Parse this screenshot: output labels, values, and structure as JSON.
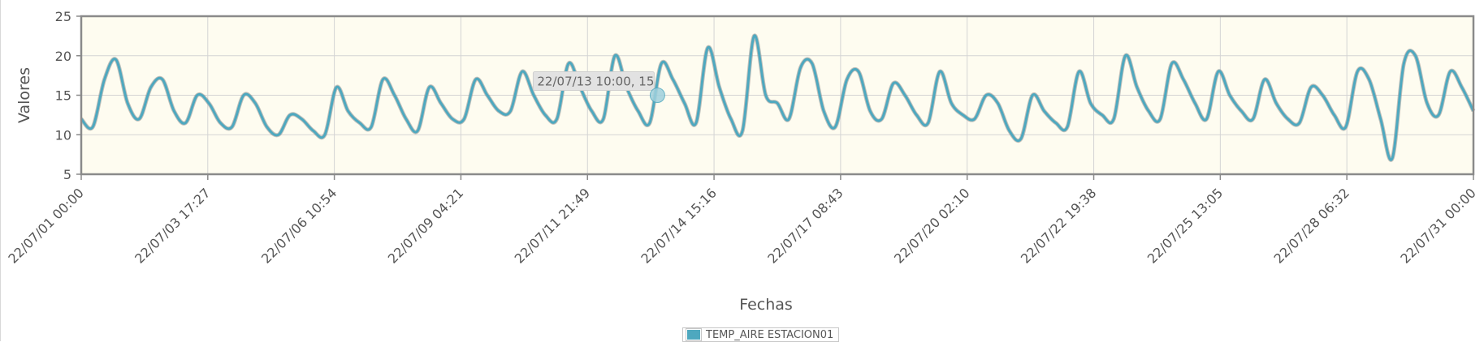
{
  "chart_data": {
    "type": "line",
    "title": "",
    "xlabel": "Fechas",
    "ylabel": "Valores",
    "x_range": [
      "22/07/01 00:00",
      "22/07/31 00:00"
    ],
    "ylim": [
      5,
      25
    ],
    "y_ticks": [
      5,
      10,
      15,
      20,
      25
    ],
    "x_tick_labels": [
      "22/07/01 00:00",
      "22/07/03 17:27",
      "22/07/06 10:54",
      "22/07/09 04:21",
      "22/07/11 21:49",
      "22/07/14 15:16",
      "22/07/17 08:43",
      "22/07/20 02:10",
      "22/07/22 19:38",
      "22/07/25 13:05",
      "22/07/28 06:32",
      "22/07/31 00:00"
    ],
    "grid": true,
    "legend_position": "bottom",
    "series": [
      {
        "name": "TEMP_AIRE ESTACION01",
        "color": "#4ea8bf",
        "x": [
          "22/07/01 00:00",
          "22/07/01 06:00",
          "22/07/01 12:00",
          "22/07/01 18:00",
          "22/07/02 00:00",
          "22/07/02 06:00",
          "22/07/02 12:00",
          "22/07/02 18:00",
          "22/07/03 00:00",
          "22/07/03 06:00",
          "22/07/03 12:00",
          "22/07/03 18:00",
          "22/07/04 00:00",
          "22/07/04 06:00",
          "22/07/04 12:00",
          "22/07/04 18:00",
          "22/07/05 00:00",
          "22/07/05 06:00",
          "22/07/05 12:00",
          "22/07/05 18:00",
          "22/07/06 00:00",
          "22/07/06 06:00",
          "22/07/06 12:00",
          "22/07/06 18:00",
          "22/07/07 00:00",
          "22/07/07 06:00",
          "22/07/07 12:00",
          "22/07/07 18:00",
          "22/07/08 00:00",
          "22/07/08 06:00",
          "22/07/08 12:00",
          "22/07/08 18:00",
          "22/07/09 00:00",
          "22/07/09 06:00",
          "22/07/09 12:00",
          "22/07/09 18:00",
          "22/07/10 00:00",
          "22/07/10 06:00",
          "22/07/10 12:00",
          "22/07/10 18:00",
          "22/07/11 00:00",
          "22/07/11 06:00",
          "22/07/11 12:00",
          "22/07/11 18:00",
          "22/07/12 00:00",
          "22/07/12 06:00",
          "22/07/12 12:00",
          "22/07/12 18:00",
          "22/07/13 00:00",
          "22/07/13 06:00",
          "22/07/13 12:00",
          "22/07/13 18:00",
          "22/07/14 00:00",
          "22/07/14 06:00",
          "22/07/14 12:00",
          "22/07/14 18:00",
          "22/07/15 00:00",
          "22/07/15 06:00",
          "22/07/15 12:00",
          "22/07/15 18:00",
          "22/07/16 00:00",
          "22/07/16 06:00",
          "22/07/16 12:00",
          "22/07/16 18:00",
          "22/07/17 00:00",
          "22/07/17 06:00",
          "22/07/17 12:00",
          "22/07/17 18:00",
          "22/07/18 00:00",
          "22/07/18 06:00",
          "22/07/18 12:00",
          "22/07/18 18:00",
          "22/07/19 00:00",
          "22/07/19 06:00",
          "22/07/19 12:00",
          "22/07/19 18:00",
          "22/07/20 00:00",
          "22/07/20 06:00",
          "22/07/20 12:00",
          "22/07/20 18:00",
          "22/07/21 00:00",
          "22/07/21 06:00",
          "22/07/21 12:00",
          "22/07/21 18:00",
          "22/07/22 00:00",
          "22/07/22 06:00",
          "22/07/22 12:00",
          "22/07/22 18:00",
          "22/07/23 00:00",
          "22/07/23 06:00",
          "22/07/23 12:00",
          "22/07/23 18:00",
          "22/07/24 00:00",
          "22/07/24 06:00",
          "22/07/24 12:00",
          "22/07/24 18:00",
          "22/07/25 00:00",
          "22/07/25 06:00",
          "22/07/25 12:00",
          "22/07/25 18:00",
          "22/07/26 00:00",
          "22/07/26 06:00",
          "22/07/26 12:00",
          "22/07/26 18:00",
          "22/07/27 00:00",
          "22/07/27 06:00",
          "22/07/27 12:00",
          "22/07/27 18:00",
          "22/07/28 00:00",
          "22/07/28 06:00",
          "22/07/28 12:00",
          "22/07/28 18:00",
          "22/07/29 00:00",
          "22/07/29 06:00",
          "22/07/29 12:00",
          "22/07/29 18:00",
          "22/07/30 00:00",
          "22/07/30 06:00",
          "22/07/30 12:00",
          "22/07/30 18:00",
          "22/07/31 00:00"
        ],
        "values": [
          12,
          11,
          17,
          19.5,
          14,
          12,
          16,
          17,
          13,
          11.5,
          15,
          14,
          11.5,
          11,
          15,
          14,
          11,
          10,
          12.5,
          12,
          10.5,
          10,
          16,
          13,
          11.5,
          11,
          17,
          15,
          12,
          10.5,
          16,
          14,
          12,
          12,
          17,
          15,
          13,
          13,
          18,
          15,
          12.5,
          12,
          19,
          16,
          13,
          12,
          20,
          16,
          13,
          11.5,
          19,
          17,
          14,
          11.5,
          21,
          16,
          12,
          10.5,
          22.5,
          15,
          14,
          12,
          18.5,
          19,
          13,
          11,
          17,
          18,
          13,
          12,
          16.5,
          15,
          12.5,
          11.5,
          18,
          14,
          12.5,
          12,
          15,
          14,
          10.5,
          9.5,
          15,
          13,
          11.5,
          11,
          18,
          14,
          12.5,
          12,
          20,
          16,
          13,
          12,
          19,
          17,
          14,
          12,
          18,
          15,
          13,
          12,
          17,
          14,
          12,
          11.5,
          16,
          15,
          12.5,
          11,
          18,
          17,
          12,
          7,
          19,
          20,
          14,
          12.5,
          18,
          16,
          13
        ]
      }
    ],
    "tooltip": {
      "text": "22/07/13 10:00, 15",
      "x": "22/07/13 10:00",
      "y": 15
    }
  }
}
